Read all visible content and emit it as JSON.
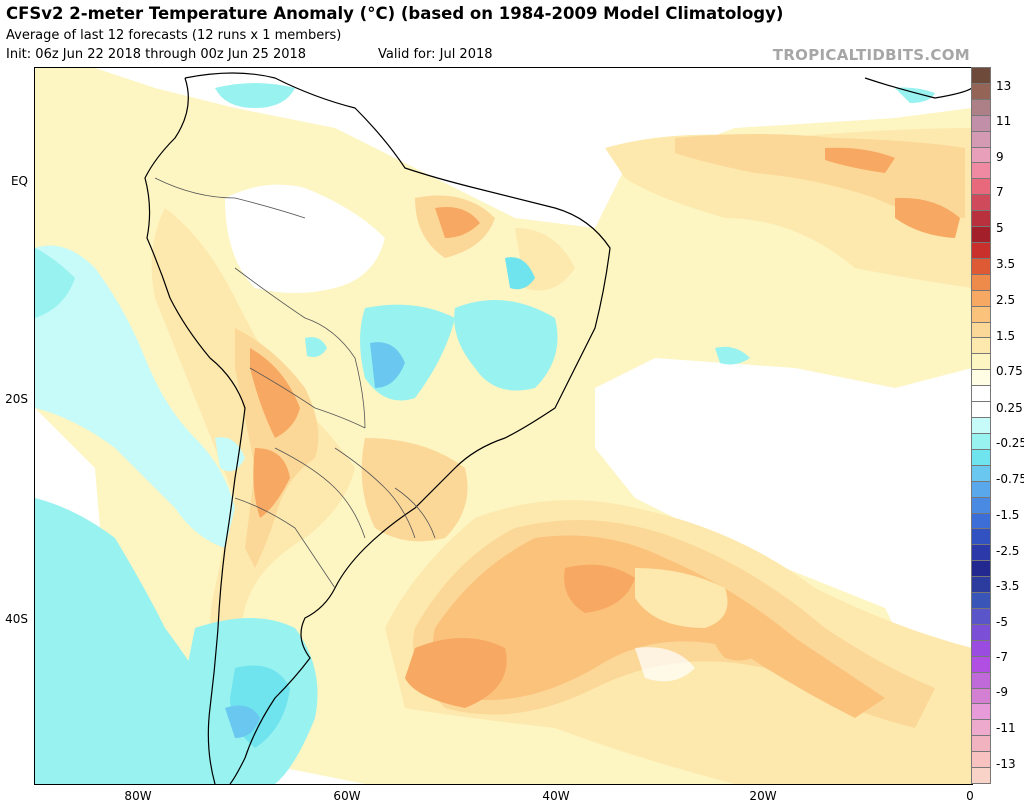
{
  "header": {
    "title": "CFSv2 2-meter Temperature Anomaly (°C) (based on 1984-2009 Model Climatology)",
    "subtitle": "Average of last 12 forecasts (12 runs x 1 members)",
    "init": "Init: 06z Jun 22 2018 through 00z Jun 25 2018",
    "valid": "Valid for: Jul 2018",
    "brand": "TROPICALTIDBITS.COM"
  },
  "map": {
    "lat_labels": [
      "EQ",
      "20S",
      "40S"
    ],
    "lon_labels": [
      "80W",
      "60W",
      "40W",
      "20W",
      "0"
    ]
  },
  "colorbar": {
    "labels": [
      "13",
      "11",
      "9",
      "7",
      "5",
      "3.5",
      "2.5",
      "1.5",
      "0.75",
      "0.25",
      "-0.25",
      "-0.75",
      "-1.5",
      "-2.5",
      "-3.5",
      "-5",
      "-7",
      "-9",
      "-11",
      "-13"
    ],
    "colors": [
      "#6e4a3a",
      "#946456",
      "#ad7f86",
      "#c190a8",
      "#d49ab4",
      "#e79fba",
      "#f08aa3",
      "#e8687c",
      "#cf4b5c",
      "#b9313d",
      "#a3202b",
      "#c9302c",
      "#de5a34",
      "#ee8a4a",
      "#f7a862",
      "#fbc27c",
      "#fcd898",
      "#fde9ad",
      "#fdf5c2",
      "#fffde4",
      "#ffffff",
      "#ffffff",
      "#c6fbf9",
      "#98f2f0",
      "#6fe4ee",
      "#6ac8f0",
      "#59a8ec",
      "#4a8ae3",
      "#3d6dd6",
      "#3352c2",
      "#2b3aa8",
      "#232891",
      "#2b3c9e",
      "#3a55b8",
      "#5a55c8",
      "#7b4fd6",
      "#9a4ce0",
      "#b24fe3",
      "#c06ad9",
      "#d37fd2",
      "#e79bd8",
      "#eeaacc",
      "#f2b3c0",
      "#f7c2bf",
      "#f9d2c8"
    ]
  }
}
